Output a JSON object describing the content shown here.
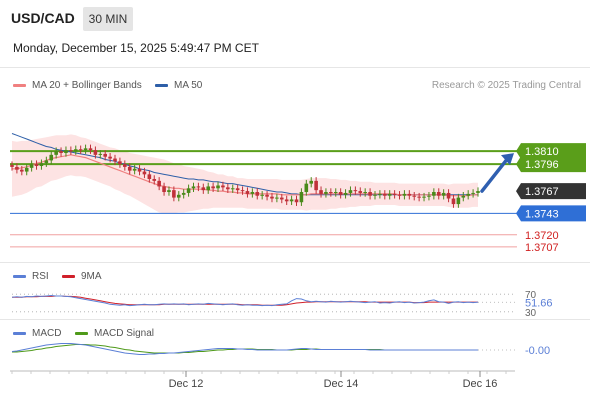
{
  "header": {
    "symbol": "USD/CAD",
    "timeframe": "30 MIN",
    "datetime": "Monday, December 15, 2025 5:49:47 PM CET"
  },
  "legend": {
    "ma20_bb": "MA 20 + Bollinger Bands",
    "ma50": "MA 50",
    "credit": "Research © 2025 Trading Central"
  },
  "colors": {
    "ma20": "#f08080",
    "ma50": "#2e5fa8",
    "band_fill": "#fde3e3",
    "green_level": "#5a9e1a",
    "blue_level": "#2f6fd6",
    "red_level": "#f0a0a0",
    "candle_up": "#4a8a1a",
    "candle_down": "#c0313a",
    "rsi": "#5b7fd6",
    "rsi_ma": "#d0202a",
    "macd": "#5b7fd6",
    "macd_signal": "#4f9a1a"
  },
  "chart_data": [
    {
      "type": "candlestick",
      "y_range": [
        1.3695,
        1.3865
      ],
      "levels": [
        {
          "name": "resistance-2",
          "value": 1.381,
          "label": "1.3810",
          "color": "#5a9e1a",
          "style": "solid"
        },
        {
          "name": "resistance-1",
          "value": 1.3796,
          "label": "1.3796",
          "color": "#5a9e1a",
          "style": "solid"
        },
        {
          "name": "last-price",
          "value": 1.3767,
          "label": "1.3767",
          "color": "#333333",
          "style": "none"
        },
        {
          "name": "pivot",
          "value": 1.3743,
          "label": "1.3743",
          "color": "#2f6fd6",
          "style": "solid"
        },
        {
          "name": "support-1",
          "value": 1.372,
          "label": "1.3720",
          "color": "#f0a0a0",
          "style": "solid"
        },
        {
          "name": "support-2",
          "value": 1.3707,
          "label": "1.3707",
          "color": "#f0a0a0",
          "style": "solid"
        }
      ],
      "closes": [
        1.3793,
        1.379,
        1.3788,
        1.3792,
        1.3796,
        1.3794,
        1.3797,
        1.38,
        1.3806,
        1.381,
        1.3808,
        1.3811,
        1.381,
        1.3812,
        1.3811,
        1.3813,
        1.3811,
        1.3806,
        1.3807,
        1.3804,
        1.3802,
        1.3799,
        1.3796,
        1.3793,
        1.3789,
        1.3791,
        1.3788,
        1.3785,
        1.378,
        1.3778,
        1.3772,
        1.3766,
        1.3768,
        1.376,
        1.3763,
        1.3765,
        1.377,
        1.3772,
        1.3771,
        1.3768,
        1.3772,
        1.377,
        1.3773,
        1.3771,
        1.3769,
        1.377,
        1.3768,
        1.3767,
        1.3764,
        1.3766,
        1.3762,
        1.3763,
        1.3761,
        1.3759,
        1.376,
        1.3758,
        1.3756,
        1.3758,
        1.3755,
        1.3766,
        1.3775,
        1.3778,
        1.3768,
        1.3764,
        1.3766,
        1.3765,
        1.3766,
        1.3763,
        1.3765,
        1.3768,
        1.3767,
        1.3765,
        1.3766,
        1.3762,
        1.3763,
        1.3764,
        1.3762,
        1.3764,
        1.3763,
        1.3762,
        1.3764,
        1.3762,
        1.3761,
        1.376,
        1.3761,
        1.3762,
        1.3766,
        1.3762,
        1.3765,
        1.3759,
        1.3753,
        1.376,
        1.3762,
        1.3764,
        1.3765,
        1.3767
      ],
      "ma20": [
        1.3791,
        1.3791,
        1.3792,
        1.3793,
        1.3795,
        1.3797,
        1.3798,
        1.38,
        1.3802,
        1.3803,
        1.3804,
        1.3805,
        1.3806,
        1.3805,
        1.3804,
        1.3803,
        1.3801,
        1.3799,
        1.3797,
        1.3795,
        1.3793,
        1.3791,
        1.3789,
        1.3787,
        1.3785,
        1.3783,
        1.3781,
        1.3779,
        1.3777,
        1.3775,
        1.3773,
        1.3772,
        1.3771,
        1.377,
        1.377,
        1.3769,
        1.3769,
        1.3769,
        1.3769,
        1.3769,
        1.3768,
        1.3768,
        1.3767,
        1.3767,
        1.3766,
        1.3766,
        1.3765,
        1.3765,
        1.3764,
        1.3764,
        1.3764,
        1.3764,
        1.3764,
        1.3764,
        1.3764,
        1.3763,
        1.3763,
        1.3763,
        1.3763,
        1.3763,
        1.3763,
        1.3764,
        1.3764,
        1.3764,
        1.3764,
        1.3764,
        1.3764,
        1.3764,
        1.3764,
        1.3764,
        1.3764,
        1.3764,
        1.3764,
        1.3764,
        1.3764,
        1.3764,
        1.3764,
        1.3764,
        1.3764,
        1.3763,
        1.3763,
        1.3763,
        1.3763,
        1.3763,
        1.3763,
        1.3763,
        1.3763,
        1.3763,
        1.3763,
        1.3762,
        1.3762,
        1.3762,
        1.3762,
        1.3762,
        1.3763,
        1.3763
      ],
      "ma50": [
        1.3829,
        1.3827,
        1.3825,
        1.3823,
        1.3821,
        1.3819,
        1.3817,
        1.3815,
        1.3814,
        1.3812,
        1.3811,
        1.381,
        1.3809,
        1.3808,
        1.3807,
        1.3806,
        1.3805,
        1.3804,
        1.3803,
        1.3801,
        1.38,
        1.3799,
        1.3797,
        1.3796,
        1.3794,
        1.3793,
        1.3791,
        1.379,
        1.3789,
        1.3787,
        1.3786,
        1.3785,
        1.3784,
        1.3783,
        1.3782,
        1.3781,
        1.378,
        1.378,
        1.3779,
        1.3779,
        1.3778,
        1.3777,
        1.3777,
        1.3776,
        1.3775,
        1.3775,
        1.3774,
        1.3773,
        1.3772,
        1.3771,
        1.377,
        1.3769,
        1.3768,
        1.3767,
        1.3766,
        1.3766,
        1.3765,
        1.3764,
        1.3764,
        1.3763,
        1.3763,
        1.3763,
        1.3763,
        1.3763,
        1.3763,
        1.3763,
        1.3763,
        1.3763,
        1.3763,
        1.3763,
        1.3763,
        1.3763,
        1.3763,
        1.3763,
        1.3763,
        1.3763,
        1.3763,
        1.3763,
        1.3763,
        1.3763,
        1.3763,
        1.3763,
        1.3763,
        1.3763,
        1.3763,
        1.3763,
        1.3763,
        1.3763,
        1.3763,
        1.3763,
        1.3763,
        1.3763,
        1.3763,
        1.3763,
        1.3763,
        1.3763
      ],
      "band_width": [
        0.003,
        0.0029,
        0.0029,
        0.0028,
        0.0027,
        0.0026,
        0.0026,
        0.0025,
        0.0024,
        0.0024,
        0.0023,
        0.0022,
        0.0022,
        0.0022,
        0.0021,
        0.0021,
        0.0021,
        0.0021,
        0.0021,
        0.0021,
        0.0021,
        0.0022,
        0.0022,
        0.0023,
        0.0023,
        0.0024,
        0.0025,
        0.0026,
        0.0027,
        0.0028,
        0.0029,
        0.0029,
        0.0028,
        0.0027,
        0.0026,
        0.0025,
        0.0024,
        0.0023,
        0.0022,
        0.0021,
        0.002,
        0.0019,
        0.0018,
        0.0018,
        0.0017,
        0.0017,
        0.0016,
        0.0016,
        0.0016,
        0.0016,
        0.0016,
        0.0016,
        0.0016,
        0.0016,
        0.0016,
        0.0016,
        0.0016,
        0.0016,
        0.0016,
        0.0016,
        0.0017,
        0.0017,
        0.0017,
        0.0017,
        0.0017,
        0.0016,
        0.0016,
        0.0015,
        0.0015,
        0.0014,
        0.0014,
        0.0013,
        0.0013,
        0.0013,
        0.0012,
        0.0012,
        0.0012,
        0.0012,
        0.0012,
        0.0012,
        0.0012,
        0.0012,
        0.0012,
        0.0012,
        0.0012,
        0.0012,
        0.0012,
        0.0012,
        0.0012,
        0.0012,
        0.0013,
        0.0013,
        0.0013,
        0.0013,
        0.0013,
        0.0013
      ],
      "forecast": {
        "from": 1.3767,
        "to": 1.381,
        "direction": "up"
      }
    },
    {
      "type": "line",
      "title": "RSI",
      "series": [
        {
          "name": "RSI"
        },
        {
          "name": "9MA"
        }
      ],
      "y_range": [
        25,
        75
      ],
      "ticks": [
        {
          "value": 70,
          "label": "70"
        },
        {
          "value": 30,
          "label": "30"
        }
      ],
      "last_value": 51.66,
      "last_label": "51.66",
      "rsi": [
        63,
        64,
        63,
        65,
        64,
        66,
        65,
        66,
        67,
        66,
        66,
        65,
        64,
        62,
        60,
        58,
        56,
        54,
        52,
        50,
        47,
        46,
        45,
        46,
        44,
        45,
        46,
        47,
        46,
        46,
        47,
        48,
        47,
        48,
        47,
        48,
        46,
        47,
        48,
        47,
        49,
        48,
        47,
        46,
        47,
        48,
        46,
        45,
        46,
        45,
        45,
        44,
        45,
        44,
        46,
        47,
        48,
        55,
        60,
        59,
        55,
        53,
        54,
        53,
        52,
        54,
        53,
        52,
        53,
        54,
        53,
        52,
        51,
        52,
        53,
        50,
        51,
        50,
        52,
        53,
        51,
        52,
        50,
        51,
        52,
        55,
        57,
        53,
        52,
        49,
        52,
        53,
        51,
        52,
        51,
        52
      ],
      "rsi_ma": [
        63,
        63,
        63,
        64,
        64,
        64,
        65,
        65,
        65,
        66,
        66,
        65,
        65,
        64,
        63,
        61,
        59,
        57,
        55,
        53,
        51,
        49,
        48,
        47,
        46,
        46,
        46,
        46,
        46,
        46,
        46,
        47,
        47,
        47,
        47,
        47,
        47,
        47,
        47,
        47,
        47,
        47,
        47,
        47,
        47,
        47,
        47,
        46,
        46,
        46,
        46,
        45,
        45,
        45,
        45,
        45,
        46,
        48,
        50,
        51,
        52,
        52,
        53,
        53,
        53,
        53,
        53,
        53,
        53,
        53,
        53,
        53,
        53,
        52,
        52,
        52,
        52,
        52,
        52,
        52,
        52,
        52,
        51,
        51,
        51,
        52,
        52,
        52,
        52,
        52,
        52,
        52,
        52,
        52,
        52,
        52
      ]
    },
    {
      "type": "line",
      "title": "MACD",
      "series": [
        {
          "name": "MACD"
        },
        {
          "name": "MACD Signal"
        }
      ],
      "y_range": [
        -0.002,
        0.002
      ],
      "last_value": -0.0,
      "last_label": "-0.00",
      "macd": [
        -0.0003,
        -0.0002,
        0.0,
        0.0002,
        0.0004,
        0.0006,
        0.0008,
        0.001,
        0.0011,
        0.0012,
        0.0013,
        0.0013,
        0.0013,
        0.0012,
        0.0011,
        0.001,
        0.0008,
        0.0006,
        0.0004,
        0.0002,
        0.0,
        -0.0002,
        -0.0004,
        -0.0006,
        -0.0007,
        -0.0008,
        -0.0009,
        -0.0009,
        -0.0008,
        -0.0008,
        -0.0007,
        -0.0007,
        -0.0006,
        -0.0006,
        -0.0005,
        -0.0004,
        -0.0003,
        -0.0002,
        -0.0001,
        0.0,
        0.0001,
        0.0002,
        0.0003,
        0.0003,
        0.0003,
        0.0003,
        0.0002,
        0.0002,
        0.0001,
        0.0001,
        0.0,
        0.0,
        0.0,
        0.0,
        0.0,
        0.0,
        0.0,
        0.0001,
        0.0002,
        0.0003,
        0.0003,
        0.0002,
        0.0001,
        0.0001,
        0.0001,
        0.0001,
        0.0001,
        0.0001,
        0.0001,
        0.0001,
        0.0001,
        0.0001,
        0.0001,
        0.0,
        0.0,
        0.0,
        0.0,
        0.0,
        0.0,
        0.0,
        0.0,
        0.0,
        0.0,
        0.0,
        0.0,
        0.0,
        0.0,
        0.0,
        0.0,
        0.0,
        0.0,
        0.0,
        0.0,
        0.0,
        0.0,
        0.0
      ],
      "signal": [
        -0.0004,
        -0.0004,
        -0.0003,
        -0.0002,
        -0.0001,
        0.0001,
        0.0002,
        0.0004,
        0.0005,
        0.0007,
        0.0008,
        0.0009,
        0.001,
        0.0011,
        0.0011,
        0.0011,
        0.001,
        0.001,
        0.0009,
        0.0008,
        0.0006,
        0.0005,
        0.0003,
        0.0001,
        0.0,
        -0.0002,
        -0.0003,
        -0.0004,
        -0.0005,
        -0.0006,
        -0.0006,
        -0.0006,
        -0.0006,
        -0.0006,
        -0.0006,
        -0.0005,
        -0.0005,
        -0.0004,
        -0.0003,
        -0.0003,
        -0.0002,
        -0.0001,
        0.0,
        0.0,
        0.0001,
        0.0001,
        0.0002,
        0.0002,
        0.0002,
        0.0002,
        0.0001,
        0.0001,
        0.0001,
        0.0001,
        0.0,
        0.0,
        0.0,
        0.0,
        0.0001,
        0.0001,
        0.0001,
        0.0002,
        0.0002,
        0.0001,
        0.0001,
        0.0001,
        0.0001,
        0.0001,
        0.0001,
        0.0001,
        0.0001,
        0.0001,
        0.0001,
        0.0001,
        0.0001,
        0.0001,
        0.0,
        0.0,
        0.0,
        0.0,
        0.0,
        0.0,
        0.0,
        0.0,
        0.0,
        0.0,
        0.0,
        0.0,
        0.0,
        0.0,
        0.0,
        0.0,
        0.0,
        0.0,
        0.0,
        0.0
      ]
    }
  ],
  "x_axis": {
    "tick_labels": [
      "Dec 12",
      "Dec 14",
      "Dec 16"
    ]
  }
}
